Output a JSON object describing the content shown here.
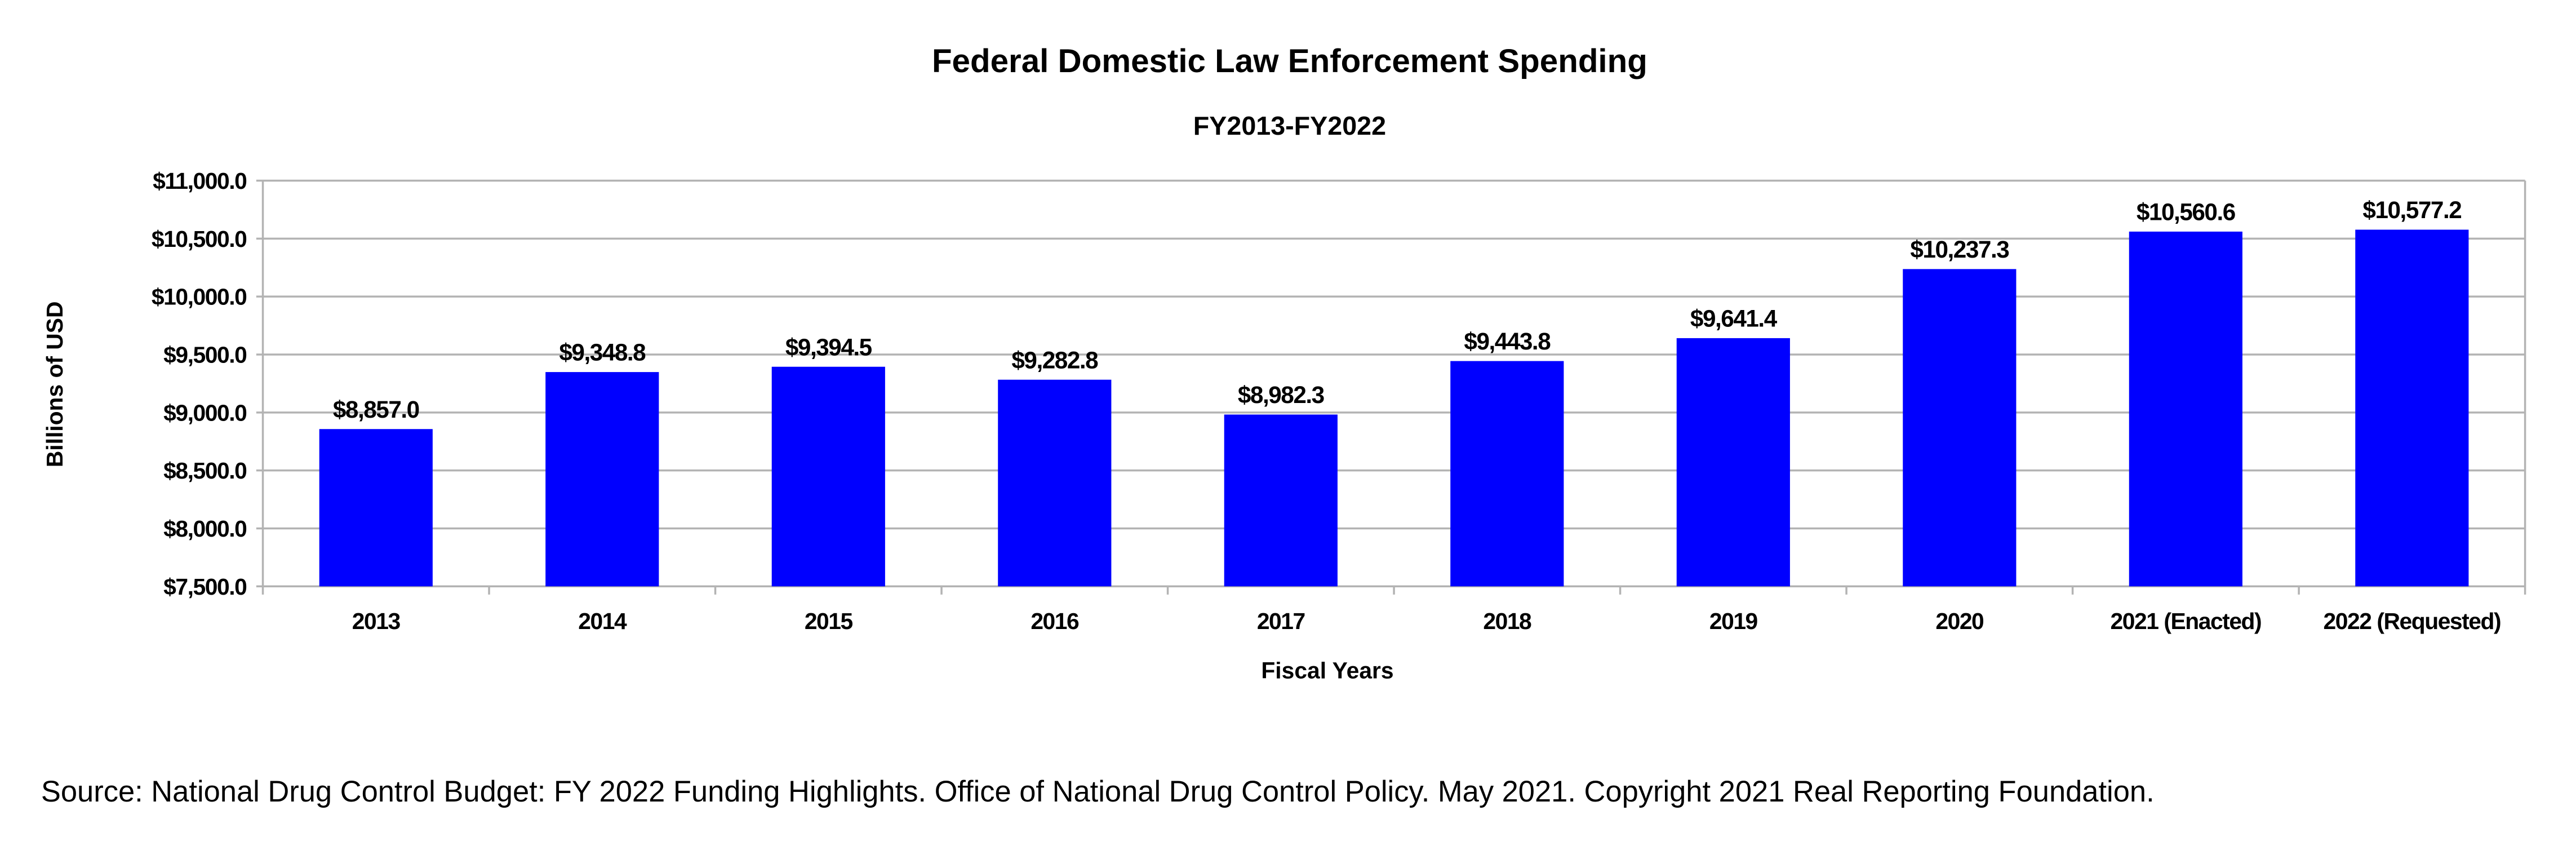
{
  "chart_data": {
    "type": "bar",
    "title": "Federal Domestic Law Enforcement Spending",
    "subtitle": "FY2013-FY2022",
    "xlabel": "Fiscal Years",
    "ylabel": "Billions of USD",
    "ylim": [
      7500,
      11000
    ],
    "yticks": [
      7500,
      8000,
      8500,
      9000,
      9500,
      10000,
      10500,
      11000
    ],
    "ytick_labels": [
      "$7,500.0",
      "$8,000.0",
      "$8,500.0",
      "$9,000.0",
      "$9,500.0",
      "$10,000.0",
      "$10,500.0",
      "$11,000.0"
    ],
    "categories": [
      "2013",
      "2014",
      "2015",
      "2016",
      "2017",
      "2018",
      "2019",
      "2020",
      "2021 (Enacted)",
      "2022 (Requested)"
    ],
    "values": [
      8857.0,
      9348.8,
      9394.5,
      9282.8,
      8982.3,
      9443.8,
      9641.4,
      10237.3,
      10560.6,
      10577.2
    ],
    "data_labels": [
      "$8,857.0",
      "$9,348.8",
      "$9,394.5",
      "$9,282.8",
      "$8,982.3",
      "$9,443.8",
      "$9,641.4",
      "$10,237.3",
      "$10,560.6",
      "$10,577.2"
    ],
    "grid": true,
    "legend": "none",
    "colors": {
      "bar": "#0000ff",
      "grid": "#b3b3b3"
    }
  },
  "source": "Source: National Drug Control Budget: FY 2022 Funding Highlights. Office of National Drug Control Policy. May 2021. Copyright 2021 Real Reporting Foundation."
}
